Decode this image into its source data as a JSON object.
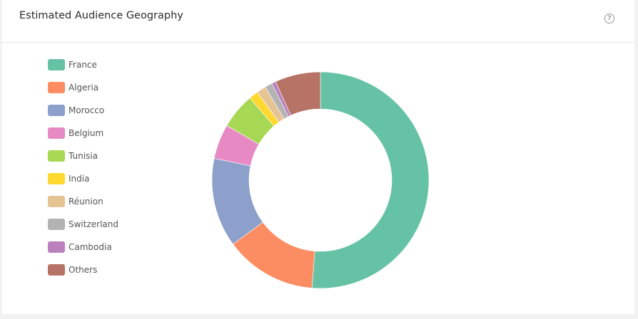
{
  "header": {
    "title": "Estimated Audience Geography",
    "help_icon": "question-circle-icon"
  },
  "chart_data": {
    "type": "pie",
    "donut": true,
    "legend_position": "left",
    "categories": [
      "France",
      "Algeria",
      "Morocco",
      "Belgium",
      "Tunisia",
      "India",
      "Réunion",
      "Switzerland",
      "Cambodia",
      "Others"
    ],
    "values": [
      51.3,
      13.7,
      13.3,
      5.2,
      5.3,
      1.4,
      1.4,
      1.1,
      0.6,
      6.8
    ],
    "colors": [
      "#66c2a5",
      "#fc8d62",
      "#8da0cb",
      "#e78ac3",
      "#a6d854",
      "#ffd92f",
      "#e5c494",
      "#b3b3b3",
      "#bc80bd",
      "#b77466"
    ]
  }
}
